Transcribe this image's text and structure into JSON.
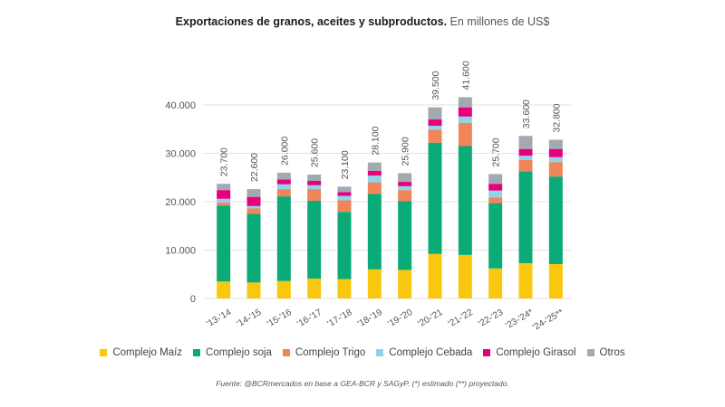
{
  "title": {
    "bold": "Exportaciones de granos, aceites y subproductos.",
    "light": "En millones de US$"
  },
  "source": "Fuente: @BCRmercados en base a GEA-BCR y SAGyP. (*) estimado (**) proyectado.",
  "chart_data": {
    "type": "bar",
    "stacked": true,
    "title": "Exportaciones de granos, aceites y subproductos. En millones de US$",
    "xlabel": "",
    "ylabel": "",
    "ylim": [
      0,
      40000
    ],
    "yticks": [
      0,
      10000,
      20000,
      30000,
      40000
    ],
    "ytick_labels": [
      "0",
      "10.000",
      "20.000",
      "30.000",
      "40.000"
    ],
    "grid": true,
    "legend_position": "bottom",
    "categories": [
      "'13-'14",
      "'14-'15",
      "'15-'16",
      "'16-'17",
      "'17-'18",
      "'18-'19",
      "'19-'20",
      "'20-'21",
      "'21-'22",
      "'22-'23",
      "'23-'24*",
      "'24-'25**"
    ],
    "totals": [
      23700,
      22600,
      26000,
      25600,
      23100,
      28100,
      25900,
      39500,
      41600,
      25700,
      33600,
      32800
    ],
    "total_labels": [
      "23.700",
      "22.600",
      "26.000",
      "25.600",
      "23.100",
      "28.100",
      "25.900",
      "39.500",
      "41.600",
      "25.700",
      "33.600",
      "32.800"
    ],
    "series": [
      {
        "name": "Complejo Maíz",
        "color": "#f9c80e",
        "values": [
          3500,
          3300,
          3600,
          4100,
          4000,
          6000,
          5900,
          9200,
          9000,
          6200,
          7300,
          7100
        ]
      },
      {
        "name": "Complejo soja",
        "color": "#0aab78",
        "values": [
          15700,
          14200,
          17500,
          16100,
          13900,
          15600,
          14200,
          23000,
          22500,
          13500,
          19000,
          18100
        ]
      },
      {
        "name": "Complejo Trigo",
        "color": "#f0855a",
        "values": [
          600,
          1100,
          1500,
          2400,
          2400,
          2400,
          2300,
          2700,
          4800,
          1200,
          2300,
          3000
        ]
      },
      {
        "name": "Complejo Cebada",
        "color": "#8fd3ea",
        "values": [
          800,
          500,
          1000,
          800,
          900,
          1400,
          800,
          800,
          1300,
          1400,
          900,
          1000
        ]
      },
      {
        "name": "Complejo Girasol",
        "color": "#e6007e",
        "values": [
          1800,
          1900,
          1000,
          900,
          800,
          1000,
          900,
          1300,
          1900,
          1400,
          1400,
          1700
        ]
      },
      {
        "name": "Otros",
        "color": "#a2a9b0",
        "values": [
          1300,
          1600,
          1400,
          1300,
          1100,
          1700,
          1800,
          2500,
          2100,
          2000,
          2700,
          1900
        ]
      }
    ]
  },
  "colors": {
    "axis_text": "#555555",
    "grid": "#e3e3e3",
    "label_text": "#555555"
  }
}
